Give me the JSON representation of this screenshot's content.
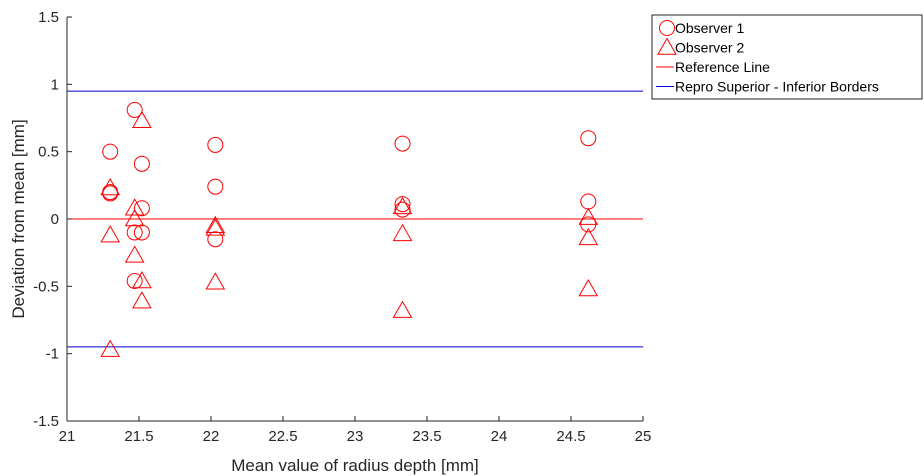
{
  "chart_data": {
    "type": "scatter",
    "xlabel": "Mean value of radius depth [mm]",
    "ylabel": "Deviation from mean [mm]",
    "xlim": [
      21,
      25
    ],
    "ylim": [
      -1.5,
      1.5
    ],
    "x_ticks": [
      "21",
      "21.5",
      "22",
      "22.5",
      "23",
      "23.5",
      "24",
      "24.5",
      "25"
    ],
    "y_ticks": [
      "-1.5",
      "-1",
      "-0.5",
      "0",
      "0.5",
      "1",
      "1.5"
    ],
    "grid": false,
    "legend_position": "outside-right-top",
    "series": [
      {
        "name": "Observer 1",
        "marker": "circle",
        "color": "#ff0000",
        "points": [
          [
            21.3,
            0.5
          ],
          [
            21.3,
            0.19
          ],
          [
            21.3,
            0.2
          ],
          [
            21.47,
            0.81
          ],
          [
            21.47,
            -0.1
          ],
          [
            21.47,
            -0.46
          ],
          [
            21.52,
            0.41
          ],
          [
            21.52,
            0.08
          ],
          [
            21.52,
            -0.1
          ],
          [
            22.03,
            0.55
          ],
          [
            22.03,
            0.24
          ],
          [
            22.03,
            -0.15
          ],
          [
            23.33,
            0.56
          ],
          [
            23.33,
            0.11
          ],
          [
            23.33,
            0.07
          ],
          [
            24.62,
            0.6
          ],
          [
            24.62,
            0.13
          ],
          [
            24.62,
            -0.04
          ]
        ]
      },
      {
        "name": "Observer 2",
        "marker": "triangle",
        "color": "#ff0000",
        "points": [
          [
            21.3,
            0.23
          ],
          [
            21.3,
            -0.12
          ],
          [
            21.3,
            -0.97
          ],
          [
            21.47,
            0.08
          ],
          [
            21.47,
            0.0
          ],
          [
            21.47,
            -0.27
          ],
          [
            21.52,
            0.73
          ],
          [
            21.52,
            -0.46
          ],
          [
            21.52,
            -0.61
          ],
          [
            22.03,
            -0.05
          ],
          [
            22.03,
            -0.07
          ],
          [
            22.03,
            -0.47
          ],
          [
            23.33,
            0.09
          ],
          [
            23.33,
            -0.11
          ],
          [
            23.33,
            -0.68
          ],
          [
            24.62,
            0.01
          ],
          [
            24.62,
            -0.14
          ],
          [
            24.62,
            -0.52
          ]
        ]
      }
    ],
    "reference_lines": [
      {
        "name": "Reference Line",
        "y": 0,
        "color": "#ff0000"
      },
      {
        "name": "Repro Superior - Inferior Borders",
        "y": 0.95,
        "color": "#0000cc"
      },
      {
        "name": "Repro Superior - Inferior Borders",
        "y": -0.95,
        "color": "#0000cc"
      }
    ],
    "legend": [
      {
        "label": "Observer 1",
        "marker": "circle",
        "color": "#ff0000"
      },
      {
        "label": "Observer 2",
        "marker": "triangle",
        "color": "#ff0000"
      },
      {
        "label": "Reference Line",
        "marker": "line",
        "color": "#ff0000"
      },
      {
        "label": "Repro Superior - Inferior Borders",
        "marker": "line",
        "color": "#0000cc"
      }
    ]
  }
}
